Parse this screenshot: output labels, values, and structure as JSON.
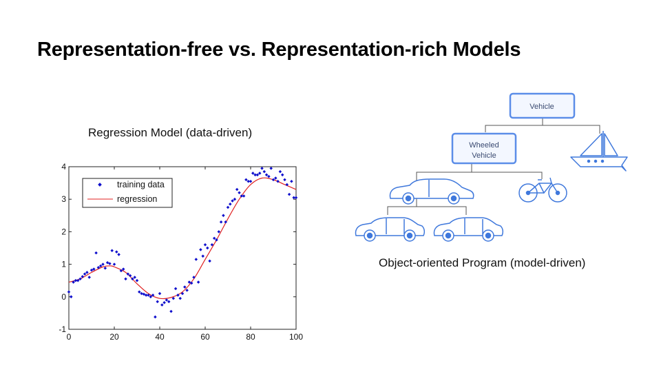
{
  "slide": {
    "title": "Representation-free vs. Representation-rich Models"
  },
  "chart_data": {
    "type": "scatter",
    "title": "Regression Model (data-driven)",
    "xlabel": "",
    "ylabel": "",
    "xlim": [
      0,
      100
    ],
    "ylim": [
      -1,
      4
    ],
    "xticks": [
      0,
      20,
      40,
      60,
      80,
      100
    ],
    "yticks": [
      -1,
      0,
      1,
      2,
      3,
      4
    ],
    "grid": false,
    "legend": {
      "placement": "top-left",
      "entries": [
        "training data",
        "regression"
      ]
    },
    "series": [
      {
        "name": "training data",
        "kind": "scatter",
        "color": "#1010cc",
        "x": [
          0,
          1,
          2,
          3,
          4,
          5,
          6,
          7,
          8,
          9,
          10,
          11,
          12,
          13,
          14,
          15,
          16,
          17,
          18,
          19,
          20,
          21,
          22,
          23,
          24,
          25,
          26,
          27,
          28,
          29,
          30,
          31,
          32,
          33,
          34,
          35,
          36,
          37,
          38,
          39,
          40,
          41,
          42,
          43,
          44,
          45,
          46,
          47,
          48,
          49,
          50,
          51,
          52,
          53,
          54,
          55,
          56,
          57,
          58,
          59,
          60,
          61,
          62,
          63,
          64,
          65,
          66,
          67,
          68,
          69,
          70,
          71,
          72,
          73,
          74,
          75,
          76,
          77,
          78,
          79,
          80,
          81,
          82,
          83,
          84,
          85,
          86,
          87,
          88,
          89,
          90,
          91,
          92,
          93,
          94,
          95,
          96,
          97,
          98,
          99,
          100
        ],
        "y": [
          0.15,
          0.0,
          0.45,
          0.5,
          0.5,
          0.55,
          0.62,
          0.7,
          0.75,
          0.6,
          0.82,
          0.85,
          1.35,
          0.9,
          0.95,
          1.0,
          0.88,
          1.05,
          1.02,
          1.42,
          1.0,
          1.38,
          1.3,
          0.8,
          0.85,
          0.55,
          0.7,
          0.65,
          0.55,
          0.6,
          0.5,
          0.15,
          0.1,
          0.08,
          0.05,
          0.05,
          0.0,
          0.05,
          -0.62,
          -0.15,
          0.1,
          -0.25,
          -0.18,
          -0.1,
          -0.15,
          -0.45,
          -0.05,
          0.25,
          0.05,
          -0.05,
          0.1,
          0.3,
          0.2,
          0.45,
          0.42,
          0.6,
          1.15,
          0.45,
          1.45,
          1.25,
          1.6,
          1.5,
          1.1,
          1.6,
          1.8,
          1.75,
          2.0,
          2.3,
          2.5,
          2.3,
          2.75,
          2.85,
          2.95,
          3.0,
          3.3,
          3.2,
          3.1,
          3.1,
          3.6,
          3.55,
          3.55,
          3.8,
          3.75,
          3.75,
          3.8,
          3.95,
          3.85,
          3.75,
          3.7,
          3.95,
          3.6,
          3.65,
          3.55,
          3.85,
          3.75,
          3.6,
          3.45,
          3.15,
          3.55,
          3.05,
          3.05
        ]
      },
      {
        "name": "regression",
        "kind": "line",
        "color": "#e02020",
        "x": [
          0,
          5,
          10,
          15,
          18,
          20,
          25,
          30,
          35,
          40,
          45,
          50,
          55,
          60,
          65,
          70,
          75,
          80,
          85,
          90,
          95,
          100
        ],
        "y": [
          0.45,
          0.55,
          0.75,
          0.92,
          0.95,
          0.92,
          0.75,
          0.4,
          0.1,
          -0.05,
          -0.02,
          0.15,
          0.55,
          1.15,
          1.75,
          2.4,
          3.0,
          3.45,
          3.65,
          3.6,
          3.45,
          3.3
        ]
      }
    ]
  },
  "diagram": {
    "caption": "Object-oriented Program (model-driven)",
    "nodes": {
      "vehicle": "Vehicle",
      "wheeled_line1": "Wheeled",
      "wheeled_line2": "Vehicle"
    },
    "colors": {
      "node_stroke": "#5b8de8",
      "node_fill": "#f3f7ff",
      "icon": "#3f78dc",
      "line": "#555555"
    }
  }
}
